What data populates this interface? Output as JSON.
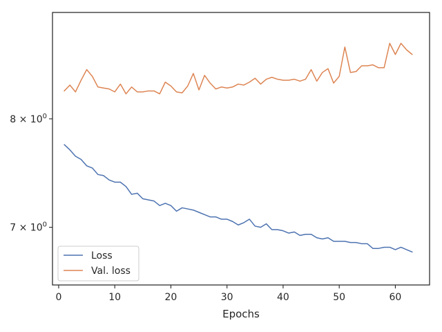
{
  "chart_data": {
    "type": "line",
    "title": "",
    "xlabel": "Epochs",
    "ylabel": "",
    "xlim": [
      -1.1,
      66.1
    ],
    "ylim": [
      6.52,
      9.12
    ],
    "yscale": "log",
    "grid": false,
    "legend_position": "bottom-left",
    "x_ticks": [
      0,
      10,
      20,
      30,
      40,
      50,
      60
    ],
    "x_tick_labels": [
      "0",
      "10",
      "20",
      "30",
      "40",
      "50",
      "60"
    ],
    "y_ticks": [
      {
        "value": 7.0,
        "mantissa": "7",
        "exponent": "0"
      },
      {
        "value": 8.0,
        "mantissa": "8",
        "exponent": "0"
      }
    ],
    "x": [
      1,
      2,
      3,
      4,
      5,
      6,
      7,
      8,
      9,
      10,
      11,
      12,
      13,
      14,
      15,
      16,
      17,
      18,
      19,
      20,
      21,
      22,
      23,
      24,
      25,
      26,
      27,
      28,
      29,
      30,
      31,
      32,
      33,
      34,
      35,
      36,
      37,
      38,
      39,
      40,
      41,
      42,
      43,
      44,
      45,
      46,
      47,
      48,
      49,
      50,
      51,
      52,
      53,
      54,
      55,
      56,
      57,
      58,
      59,
      60,
      61,
      62,
      63
    ],
    "series": [
      {
        "name": "Loss",
        "color": "#4c72b0",
        "values": [
          7.75,
          7.7,
          7.64,
          7.61,
          7.55,
          7.53,
          7.47,
          7.46,
          7.42,
          7.4,
          7.4,
          7.36,
          7.29,
          7.3,
          7.25,
          7.24,
          7.23,
          7.19,
          7.21,
          7.19,
          7.14,
          7.17,
          7.16,
          7.15,
          7.13,
          7.11,
          7.09,
          7.09,
          7.07,
          7.07,
          7.05,
          7.02,
          7.04,
          7.07,
          7.01,
          7.0,
          7.03,
          6.98,
          6.98,
          6.97,
          6.95,
          6.96,
          6.93,
          6.94,
          6.94,
          6.91,
          6.9,
          6.91,
          6.88,
          6.88,
          6.88,
          6.87,
          6.87,
          6.86,
          6.86,
          6.82,
          6.82,
          6.83,
          6.83,
          6.81,
          6.83,
          6.81,
          6.79
        ]
      },
      {
        "name": "Val. loss",
        "color": "#dd8452",
        "values": [
          8.28,
          8.34,
          8.27,
          8.39,
          8.5,
          8.43,
          8.32,
          8.31,
          8.3,
          8.27,
          8.35,
          8.25,
          8.32,
          8.27,
          8.27,
          8.28,
          8.28,
          8.25,
          8.37,
          8.33,
          8.27,
          8.26,
          8.33,
          8.46,
          8.29,
          8.44,
          8.36,
          8.3,
          8.32,
          8.31,
          8.32,
          8.35,
          8.34,
          8.37,
          8.41,
          8.35,
          8.4,
          8.42,
          8.4,
          8.39,
          8.39,
          8.4,
          8.38,
          8.4,
          8.5,
          8.38,
          8.47,
          8.51,
          8.36,
          8.43,
          8.74,
          8.47,
          8.48,
          8.54,
          8.54,
          8.55,
          8.52,
          8.52,
          8.78,
          8.66,
          8.78,
          8.71,
          8.66
        ]
      }
    ]
  }
}
